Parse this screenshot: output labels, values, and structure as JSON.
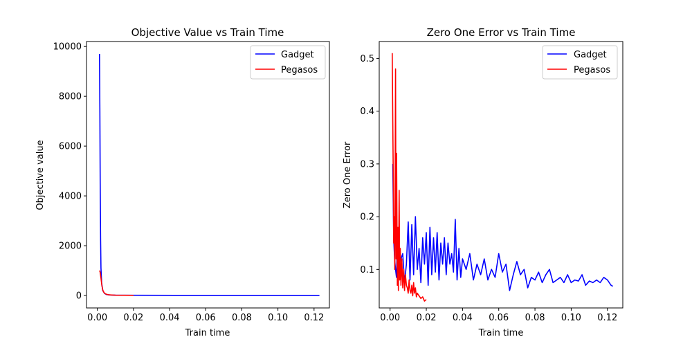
{
  "chart_data": [
    {
      "type": "line",
      "title": "Objective Value vs Train Time",
      "xlabel": "Train time",
      "ylabel": "Objective value",
      "xlim": [
        -0.006,
        0.1285
      ],
      "ylim": [
        -500,
        10200
      ],
      "xticks": [
        0.0,
        0.02,
        0.04,
        0.06,
        0.08,
        0.1,
        0.12
      ],
      "xtick_labels": [
        "0.00",
        "0.02",
        "0.04",
        "0.06",
        "0.08",
        "0.10",
        "0.12"
      ],
      "yticks": [
        0,
        2000,
        4000,
        6000,
        8000,
        10000
      ],
      "ytick_labels": [
        "0",
        "2000",
        "4000",
        "6000",
        "8000",
        "10000"
      ],
      "legend": "top-right",
      "grid": false,
      "series": [
        {
          "name": "Gadget",
          "color": "#0000ff",
          "x": [
            0.0012,
            0.0014,
            0.0016,
            0.0018,
            0.002,
            0.0024,
            0.003,
            0.004,
            0.005,
            0.007,
            0.01,
            0.02,
            0.05,
            0.1,
            0.123
          ],
          "y": [
            9700,
            7500,
            4500,
            2200,
            1100,
            500,
            200,
            80,
            40,
            20,
            12,
            8,
            6,
            5,
            5
          ]
        },
        {
          "name": "Pegasos",
          "color": "#ff0000",
          "x": [
            0.0012,
            0.0015,
            0.002,
            0.0025,
            0.003,
            0.0035,
            0.004,
            0.005,
            0.006,
            0.008,
            0.01,
            0.015,
            0.02
          ],
          "y": [
            1000,
            950,
            700,
            400,
            220,
            140,
            90,
            50,
            30,
            20,
            12,
            8,
            6
          ]
        }
      ]
    },
    {
      "type": "line",
      "title": "Zero One Error vs Train Time",
      "xlabel": "Train time",
      "ylabel": "Zero One Error",
      "xlim": [
        -0.006,
        0.1285
      ],
      "ylim": [
        0.027,
        0.532
      ],
      "xticks": [
        0.0,
        0.02,
        0.04,
        0.06,
        0.08,
        0.1,
        0.12
      ],
      "xtick_labels": [
        "0.00",
        "0.02",
        "0.04",
        "0.06",
        "0.08",
        "0.10",
        "0.12"
      ],
      "yticks": [
        0.1,
        0.2,
        0.3,
        0.4,
        0.5
      ],
      "ytick_labels": [
        "0.1",
        "0.2",
        "0.3",
        "0.4",
        "0.5"
      ],
      "legend": "top-right",
      "grid": false,
      "series": [
        {
          "name": "Gadget",
          "color": "#0000ff",
          "x": [
            0.0015,
            0.002,
            0.0025,
            0.003,
            0.0035,
            0.004,
            0.005,
            0.006,
            0.007,
            0.008,
            0.009,
            0.01,
            0.011,
            0.012,
            0.013,
            0.014,
            0.015,
            0.016,
            0.017,
            0.018,
            0.019,
            0.02,
            0.021,
            0.022,
            0.023,
            0.024,
            0.025,
            0.026,
            0.027,
            0.028,
            0.029,
            0.03,
            0.031,
            0.032,
            0.033,
            0.034,
            0.035,
            0.036,
            0.037,
            0.038,
            0.039,
            0.04,
            0.042,
            0.044,
            0.046,
            0.048,
            0.05,
            0.052,
            0.054,
            0.056,
            0.058,
            0.06,
            0.062,
            0.064,
            0.066,
            0.068,
            0.07,
            0.072,
            0.074,
            0.076,
            0.078,
            0.08,
            0.082,
            0.084,
            0.086,
            0.088,
            0.09,
            0.092,
            0.094,
            0.096,
            0.098,
            0.1,
            0.102,
            0.104,
            0.106,
            0.108,
            0.11,
            0.112,
            0.114,
            0.116,
            0.118,
            0.12,
            0.122,
            0.123
          ],
          "y": [
            0.3,
            0.16,
            0.12,
            0.1,
            0.085,
            0.15,
            0.095,
            0.12,
            0.13,
            0.075,
            0.11,
            0.19,
            0.08,
            0.185,
            0.09,
            0.2,
            0.1,
            0.14,
            0.075,
            0.16,
            0.11,
            0.17,
            0.07,
            0.18,
            0.09,
            0.16,
            0.095,
            0.17,
            0.08,
            0.15,
            0.11,
            0.16,
            0.09,
            0.15,
            0.11,
            0.13,
            0.095,
            0.195,
            0.08,
            0.14,
            0.085,
            0.12,
            0.1,
            0.13,
            0.08,
            0.11,
            0.09,
            0.12,
            0.08,
            0.1,
            0.085,
            0.13,
            0.095,
            0.11,
            0.06,
            0.09,
            0.115,
            0.09,
            0.1,
            0.065,
            0.085,
            0.08,
            0.095,
            0.075,
            0.09,
            0.1,
            0.075,
            0.08,
            0.085,
            0.075,
            0.09,
            0.075,
            0.08,
            0.078,
            0.09,
            0.07,
            0.078,
            0.075,
            0.08,
            0.075,
            0.085,
            0.08,
            0.07,
            0.068
          ]
        },
        {
          "name": "Pegasos",
          "color": "#ff0000",
          "x": [
            0.0012,
            0.0015,
            0.0018,
            0.002,
            0.0023,
            0.0026,
            0.003,
            0.0033,
            0.0036,
            0.004,
            0.0043,
            0.0046,
            0.005,
            0.0053,
            0.0056,
            0.006,
            0.0065,
            0.007,
            0.0075,
            0.008,
            0.0085,
            0.009,
            0.0095,
            0.01,
            0.0105,
            0.011,
            0.0115,
            0.012,
            0.0125,
            0.013,
            0.0135,
            0.014,
            0.0145,
            0.015,
            0.016,
            0.017,
            0.018,
            0.019,
            0.02
          ],
          "y": [
            0.51,
            0.38,
            0.26,
            0.15,
            0.2,
            0.1,
            0.48,
            0.12,
            0.32,
            0.07,
            0.18,
            0.06,
            0.25,
            0.08,
            0.14,
            0.07,
            0.12,
            0.065,
            0.1,
            0.06,
            0.09,
            0.07,
            0.065,
            0.055,
            0.08,
            0.06,
            0.055,
            0.07,
            0.05,
            0.075,
            0.055,
            0.065,
            0.048,
            0.055,
            0.05,
            0.045,
            0.048,
            0.04,
            0.043
          ]
        }
      ]
    }
  ]
}
